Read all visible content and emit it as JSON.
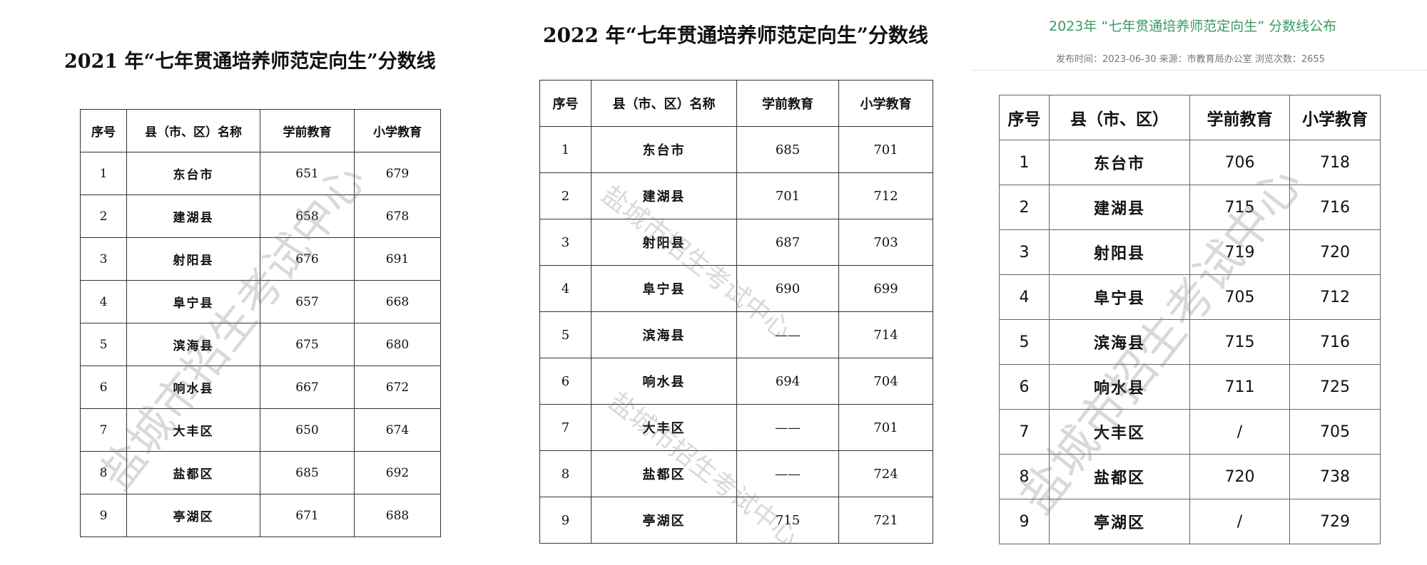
{
  "watermark": "盐城市招生考试中心",
  "tables": [
    {
      "title": "2021 年“七年贯通培养师范定向生”分数线",
      "headers": [
        "序号",
        "县（市、区）名称",
        "学前教育",
        "小学教育"
      ],
      "rows": [
        [
          "1",
          "东台市",
          "651",
          "679"
        ],
        [
          "2",
          "建湖县",
          "658",
          "678"
        ],
        [
          "3",
          "射阳县",
          "676",
          "691"
        ],
        [
          "4",
          "阜宁县",
          "657",
          "668"
        ],
        [
          "5",
          "滨海县",
          "675",
          "680"
        ],
        [
          "6",
          "响水县",
          "667",
          "672"
        ],
        [
          "7",
          "大丰区",
          "650",
          "674"
        ],
        [
          "8",
          "盐都区",
          "685",
          "692"
        ],
        [
          "9",
          "亭湖区",
          "671",
          "688"
        ]
      ]
    },
    {
      "title": "2022 年“七年贯通培养师范定向生”分数线",
      "headers": [
        "序号",
        "县（市、区）名称",
        "学前教育",
        "小学教育"
      ],
      "rows": [
        [
          "1",
          "东台市",
          "685",
          "701"
        ],
        [
          "2",
          "建湖县",
          "701",
          "712"
        ],
        [
          "3",
          "射阳县",
          "687",
          "703"
        ],
        [
          "4",
          "阜宁县",
          "690",
          "699"
        ],
        [
          "5",
          "滨海县",
          "——",
          "714"
        ],
        [
          "6",
          "响水县",
          "694",
          "704"
        ],
        [
          "7",
          "大丰区",
          "——",
          "701"
        ],
        [
          "8",
          "盐都区",
          "——",
          "724"
        ],
        [
          "9",
          "亭湖区",
          "715",
          "721"
        ]
      ]
    },
    {
      "title": "2023年 “七年贯通培养师范定向生” 分数线公布",
      "meta": "发布时间：2023-06-30 来源：市教育局办公室 浏览次数：2655",
      "title_color": "#3a9a62",
      "headers": [
        "序号",
        "县（市、区）",
        "学前教育",
        "小学教育"
      ],
      "rows": [
        [
          "1",
          "东台市",
          "706",
          "718"
        ],
        [
          "2",
          "建湖县",
          "715",
          "716"
        ],
        [
          "3",
          "射阳县",
          "719",
          "720"
        ],
        [
          "4",
          "阜宁县",
          "705",
          "712"
        ],
        [
          "5",
          "滨海县",
          "715",
          "716"
        ],
        [
          "6",
          "响水县",
          "711",
          "725"
        ],
        [
          "7",
          "大丰区",
          "/",
          "705"
        ],
        [
          "8",
          "盐都区",
          "720",
          "738"
        ],
        [
          "9",
          "亭湖区",
          "/",
          "729"
        ]
      ]
    }
  ]
}
